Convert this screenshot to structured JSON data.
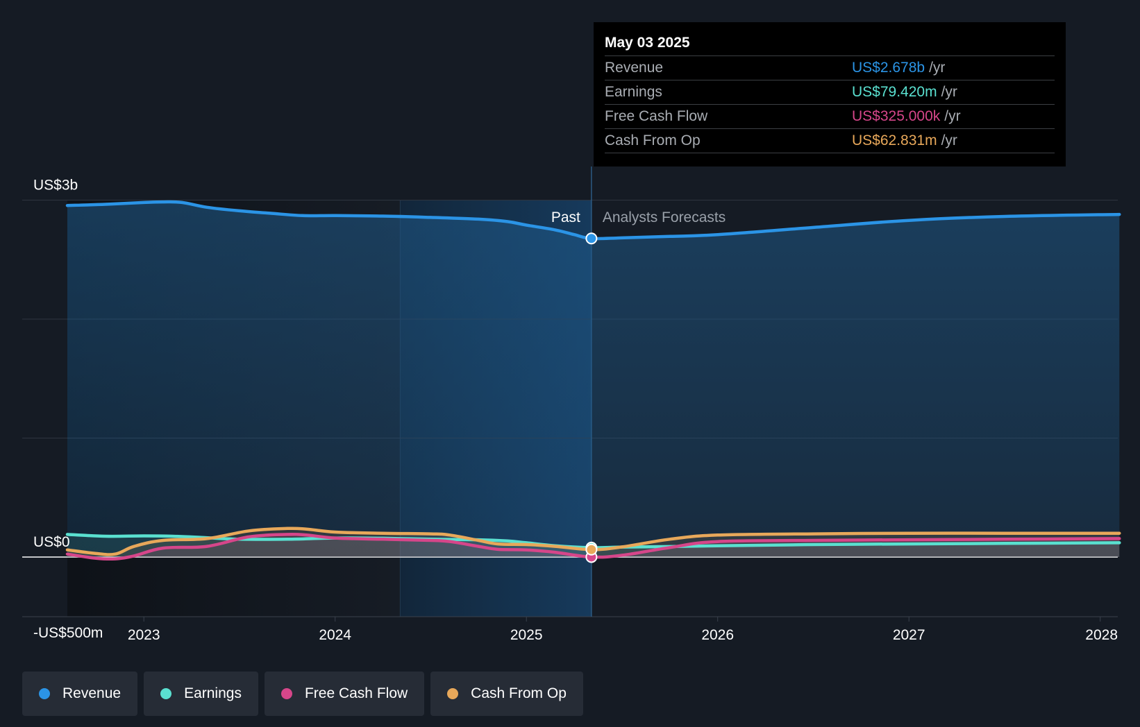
{
  "chart_data": {
    "type": "line",
    "x_range": [
      2022.6,
      2028.1
    ],
    "ylim": [
      -500,
      3000
    ],
    "y_unit": "US$m",
    "y_tick_labels": [
      {
        "value": 3000,
        "label": "US$3b"
      },
      {
        "value": 0,
        "label": "US$0"
      },
      {
        "value": -500,
        "label": "-US$500m"
      }
    ],
    "gridlines": [
      3000,
      2000,
      1000,
      0
    ],
    "x_ticks": [
      {
        "value": 2023,
        "label": "2023"
      },
      {
        "value": 2024,
        "label": "2024"
      },
      {
        "value": 2025,
        "label": "2025"
      },
      {
        "value": 2026,
        "label": "2026"
      },
      {
        "value": 2027,
        "label": "2027"
      },
      {
        "value": 2028,
        "label": "2028"
      }
    ],
    "divider_x": 2025.34,
    "highlight_start_x": 2024.34,
    "past_label": "Past",
    "forecast_label": "Analysts Forecasts",
    "series": [
      {
        "name": "Revenue",
        "key": "revenue",
        "color": "#2b94e6",
        "x": [
          2022.6,
          2022.8,
          2023.0,
          2023.1,
          2023.2,
          2023.33,
          2023.5,
          2023.66,
          2023.83,
          2024.0,
          2024.25,
          2024.5,
          2024.75,
          2024.9,
          2025.0,
          2025.15,
          2025.25,
          2025.34,
          2025.5,
          2025.75,
          2026.0,
          2026.5,
          2027.0,
          2027.5,
          2028.1
        ],
        "y": [
          2955,
          2965,
          2980,
          2985,
          2980,
          2940,
          2910,
          2890,
          2870,
          2870,
          2866,
          2855,
          2840,
          2820,
          2790,
          2750,
          2710,
          2678,
          2683,
          2695,
          2710,
          2770,
          2830,
          2863,
          2880
        ]
      },
      {
        "name": "Earnings",
        "key": "earnings",
        "color": "#5ae0d0",
        "x": [
          2022.6,
          2022.8,
          2023.0,
          2023.15,
          2023.3,
          2023.5,
          2023.75,
          2024.0,
          2024.25,
          2024.5,
          2024.75,
          2024.9,
          2025.0,
          2025.15,
          2025.34,
          2025.5,
          2025.75,
          2026.0,
          2026.5,
          2027.0,
          2027.5,
          2028.1
        ],
        "y": [
          190,
          175,
          178,
          175,
          165,
          150,
          150,
          160,
          158,
          150,
          145,
          135,
          120,
          95,
          79.42,
          84,
          88,
          95,
          105,
          110,
          115,
          120
        ]
      },
      {
        "name": "Free Cash Flow",
        "key": "fcf",
        "color": "#d6468a",
        "x": [
          2022.6,
          2022.75,
          2022.85,
          2022.95,
          2023.1,
          2023.33,
          2023.55,
          2023.75,
          2023.85,
          2024.0,
          2024.25,
          2024.5,
          2024.6,
          2024.75,
          2024.85,
          2025.0,
          2025.15,
          2025.34,
          2025.5,
          2025.75,
          2026.0,
          2026.5,
          2027.0,
          2027.5,
          2028.1
        ],
        "y": [
          25,
          -10,
          -15,
          10,
          75,
          90,
          170,
          190,
          185,
          160,
          150,
          140,
          130,
          90,
          65,
          60,
          40,
          0.325,
          15,
          80,
          130,
          140,
          145,
          150,
          155
        ]
      },
      {
        "name": "Cash From Op",
        "key": "cfo",
        "color": "#e8a85a",
        "x": [
          2022.6,
          2022.75,
          2022.85,
          2022.95,
          2023.1,
          2023.33,
          2023.55,
          2023.75,
          2023.85,
          2024.0,
          2024.25,
          2024.5,
          2024.6,
          2024.75,
          2024.85,
          2025.0,
          2025.15,
          2025.34,
          2025.5,
          2025.75,
          2026.0,
          2026.5,
          2027.0,
          2027.5,
          2028.1
        ],
        "y": [
          60,
          30,
          25,
          90,
          140,
          155,
          220,
          240,
          235,
          210,
          200,
          195,
          185,
          140,
          110,
          105,
          90,
          62.831,
          85,
          150,
          185,
          195,
          200,
          200,
          200
        ]
      }
    ]
  },
  "tooltip": {
    "date": "May 03 2025",
    "rows": [
      {
        "label": "Revenue",
        "value": "US$2.678b",
        "unit": "/yr",
        "color": "#2b94e6"
      },
      {
        "label": "Earnings",
        "value": "US$79.420m",
        "unit": "/yr",
        "color": "#5ae0d0"
      },
      {
        "label": "Free Cash Flow",
        "value": "US$325.000k",
        "unit": "/yr",
        "color": "#d6468a"
      },
      {
        "label": "Cash From Op",
        "value": "US$62.831m",
        "unit": "/yr",
        "color": "#e8a85a"
      }
    ]
  },
  "legend": [
    {
      "label": "Revenue",
      "color": "#2b94e6"
    },
    {
      "label": "Earnings",
      "color": "#5ae0d0"
    },
    {
      "label": "Free Cash Flow",
      "color": "#d6468a"
    },
    {
      "label": "Cash From Op",
      "color": "#e8a85a"
    }
  ]
}
